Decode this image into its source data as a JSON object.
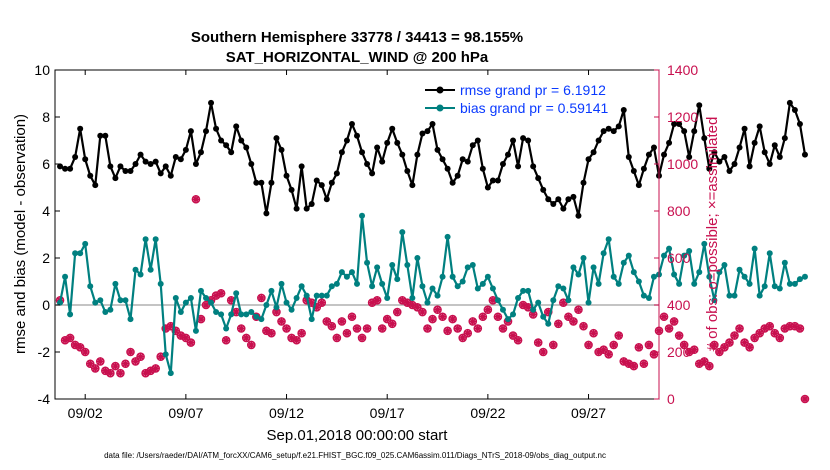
{
  "chart_data": {
    "type": "line",
    "title": "Southern Hemisphere 33778 / 34413 = 98.155%",
    "subtitle": "SAT_HORIZONTAL_WIND @ 200 hPa",
    "xlabel": "Sep.01,2018 00:00:00 start",
    "ylabel": "rmse and bias (model - observation)",
    "ylabel_right": "# of obs: o=possible; ×=assimilated",
    "footer": "data file: /Users/raeder/DAI/ATM_forcXX/CAM6_setup/f.e21.FHIST_BGC.f09_025.CAM6assim.011/Diags_NTrS_2018-09/obs_diag_output.nc",
    "xlim": [
      0.5,
      30.5
    ],
    "ylim": [
      -4,
      10
    ],
    "ylim_right": [
      0,
      1400
    ],
    "x_ticks": [
      2,
      7,
      12,
      17,
      22,
      27
    ],
    "x_tick_labels": [
      "09/02",
      "09/07",
      "09/12",
      "09/17",
      "09/22",
      "09/27"
    ],
    "y_ticks": [
      -4,
      -2,
      0,
      2,
      4,
      6,
      8,
      10
    ],
    "y_tick_labels": [
      "-4",
      "-2",
      "0",
      "2",
      "4",
      "6",
      "8",
      "10"
    ],
    "y_right_ticks": [
      0,
      200,
      400,
      600,
      800,
      1000,
      1200,
      1400
    ],
    "y_right_tick_labels": [
      "0",
      "200",
      "400",
      "600",
      "800",
      "1000",
      "1200",
      "1400"
    ],
    "zero_line_value": 0,
    "legend": {
      "position": "top-right",
      "entries": [
        "rmse grand pr = 6.1912",
        "bias grand pr = 0.59141"
      ]
    },
    "colors": {
      "rmse": "#000000",
      "bias": "#008080",
      "obs": "#c8104f",
      "zero_line": "#b0b0b0",
      "legend_text": "#0a3aff"
    },
    "x_start": 0.75,
    "x_step": 0.25,
    "series": [
      {
        "name": "rmse",
        "values": [
          5.9,
          5.8,
          5.8,
          6.3,
          7.5,
          6.2,
          5.5,
          5.1,
          7.2,
          7.2,
          5.9,
          5.4,
          5.9,
          5.7,
          5.7,
          6.0,
          6.4,
          6.1,
          6.0,
          6.1,
          5.6,
          5.9,
          5.5,
          6.3,
          6.2,
          6.6,
          7.4,
          6.0,
          6.5,
          7.4,
          8.6,
          7.5,
          7.0,
          6.8,
          6.5,
          7.6,
          7.0,
          6.7,
          6.0,
          5.2,
          5.2,
          3.9,
          5.2,
          7.1,
          6.6,
          5.5,
          4.9,
          4.1,
          5.9,
          4.1,
          4.3,
          5.3,
          5.1,
          4.5,
          5.2,
          5.6,
          6.5,
          7.0,
          7.7,
          7.2,
          6.5,
          6.0,
          5.6,
          6.7,
          6.1,
          6.9,
          7.5,
          6.9,
          6.4,
          5.7,
          5.1,
          6.4,
          7.3,
          7.4,
          7.7,
          6.6,
          6.2,
          5.8,
          5.2,
          5.5,
          6.2,
          6.1,
          6.8,
          7.0,
          5.8,
          5.0,
          5.3,
          5.3,
          6.0,
          6.4,
          7.0,
          5.9,
          7.1,
          7.0,
          5.9,
          5.4,
          4.9,
          4.5,
          4.3,
          4.5,
          4.1,
          4.5,
          4.6,
          3.8,
          5.2,
          6.2,
          6.5,
          7.0,
          7.4,
          7.5,
          7.4,
          7.6,
          8.3,
          6.3,
          5.7,
          5.1,
          5.8,
          6.4,
          6.7,
          5.5,
          6.4,
          6.9,
          7.7,
          7.7,
          7.4,
          6.3,
          7.4,
          8.5,
          7.1,
          5.8,
          6.5,
          6.1,
          6.3,
          5.7,
          6.0,
          6.7,
          7.5,
          5.9,
          6.9,
          7.6,
          6.5,
          6.0,
          6.8,
          6.3,
          7.1,
          8.6,
          8.3,
          7.7,
          6.4
        ],
        "color": "#000000",
        "marker": "filled-circle"
      },
      {
        "name": "bias",
        "values": [
          0.1,
          1.2,
          -0.4,
          2.2,
          2.2,
          2.6,
          0.8,
          0.1,
          0.2,
          -0.3,
          -0.2,
          0.9,
          0.2,
          0.2,
          -0.6,
          1.5,
          1.3,
          2.8,
          1.5,
          2.8,
          0.9,
          -2.1,
          -2.9,
          0.3,
          -0.3,
          0.1,
          0.3,
          -1.1,
          0.6,
          0.3,
          0.1,
          -0.3,
          -0.4,
          -1.0,
          -0.4,
          0.5,
          -0.4,
          -0.4,
          -0.3,
          -0.5,
          -0.6,
          0.0,
          0.6,
          -0.1,
          0.9,
          0.1,
          -0.2,
          0.3,
          0.8,
          0.4,
          -0.6,
          0.4,
          0.4,
          0.4,
          0.8,
          0.9,
          1.4,
          1.2,
          1.4,
          0.9,
          3.8,
          1.8,
          0.8,
          1.6,
          0.9,
          0.3,
          1.7,
          1.1,
          3.1,
          1.7,
          0.3,
          2.0,
          0.8,
          0.1,
          0.7,
          0.4,
          1.2,
          2.9,
          1.2,
          0.8,
          1.0,
          1.6,
          1.7,
          0.7,
          0.9,
          1.2,
          0.7,
          0.2,
          -0.2,
          -0.6,
          -0.4,
          0.3,
          0.6,
          0.6,
          -0.2,
          0.1,
          -0.5,
          -0.8,
          0.2,
          0.8,
          0.7,
          0.2,
          1.6,
          1.3,
          2.0,
          0.1,
          1.6,
          0.9,
          2.2,
          2.8,
          1.2,
          0.9,
          1.8,
          2.1,
          1.4,
          1.0,
          0.4,
          0.3,
          1.2,
          1.3,
          2.1,
          2.4,
          1.3,
          0.9,
          2.1,
          2.3,
          0.9,
          1.4,
          2.6,
          1.2,
          0.2,
          1.4,
          1.7,
          0.4,
          0.4,
          1.5,
          1.2,
          0.9,
          2.4,
          0.4,
          0.8,
          2.2,
          0.8,
          0.7,
          1.8,
          0.9,
          0.9,
          1.1,
          1.2
        ],
        "color": "#008080",
        "marker": "filled-circle"
      },
      {
        "name": "obs_possible",
        "axis": "right",
        "values": [
          420,
          250,
          260,
          230,
          220,
          200,
          150,
          130,
          160,
          120,
          110,
          140,
          110,
          150,
          200,
          160,
          180,
          110,
          120,
          130,
          180,
          300,
          310,
          290,
          270,
          260,
          240,
          850,
          340,
          400,
          420,
          440,
          450,
          250,
          420,
          370,
          300,
          260,
          230,
          350,
          430,
          290,
          280,
          370,
          330,
          300,
          260,
          250,
          280,
          420,
          410,
          390,
          410,
          330,
          310,
          260,
          330,
          280,
          350,
          300,
          260,
          300,
          410,
          420,
          300,
          340,
          320,
          370,
          420,
          410,
          400,
          390,
          370,
          300,
          340,
          380,
          350,
          290,
          340,
          300,
          260,
          280,
          330,
          300,
          350,
          380,
          420,
          350,
          300,
          330,
          270,
          250,
          400,
          390,
          360,
          240,
          200,
          370,
          230,
          320,
          410,
          350,
          330,
          380,
          310,
          230,
          280,
          200,
          210,
          190,
          230,
          270,
          160,
          150,
          140,
          220,
          150,
          230,
          190,
          290,
          350,
          300,
          330,
          270,
          230,
          200,
          210,
          150,
          160,
          140,
          230,
          200,
          220,
          240,
          270,
          300,
          240,
          220,
          260,
          280,
          300,
          310,
          280,
          260,
          300,
          310,
          310,
          300,
          0
        ],
        "color": "#c8104f",
        "marker": "open-circle"
      },
      {
        "name": "obs_assimilated",
        "axis": "right",
        "values": [
          420,
          250,
          260,
          230,
          220,
          200,
          150,
          130,
          160,
          120,
          110,
          140,
          110,
          150,
          200,
          160,
          180,
          110,
          120,
          130,
          180,
          300,
          310,
          290,
          270,
          260,
          240,
          850,
          340,
          400,
          420,
          440,
          450,
          250,
          420,
          370,
          300,
          260,
          230,
          350,
          430,
          290,
          280,
          370,
          330,
          300,
          260,
          250,
          280,
          420,
          410,
          390,
          410,
          330,
          310,
          260,
          330,
          280,
          350,
          300,
          260,
          300,
          410,
          420,
          300,
          340,
          320,
          370,
          420,
          410,
          400,
          390,
          370,
          300,
          340,
          380,
          350,
          290,
          340,
          300,
          260,
          280,
          330,
          300,
          350,
          380,
          420,
          350,
          300,
          330,
          270,
          250,
          400,
          390,
          360,
          240,
          200,
          370,
          230,
          320,
          410,
          350,
          330,
          380,
          310,
          230,
          280,
          200,
          210,
          190,
          230,
          270,
          160,
          150,
          140,
          220,
          150,
          230,
          190,
          290,
          350,
          300,
          330,
          270,
          230,
          200,
          210,
          150,
          160,
          140,
          230,
          200,
          220,
          240,
          270,
          300,
          240,
          220,
          260,
          280,
          300,
          310,
          280,
          260,
          300,
          310,
          310,
          300,
          0
        ],
        "color": "#c8104f",
        "marker": "asterisk"
      }
    ]
  }
}
